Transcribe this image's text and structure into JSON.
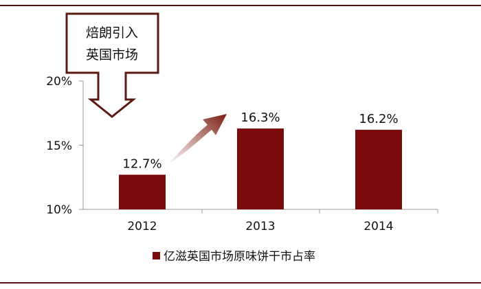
{
  "chart_data": {
    "type": "bar",
    "categories": [
      "2012",
      "2013",
      "2014"
    ],
    "series": [
      {
        "name": "亿滋英国市场原味饼干市占率",
        "values": [
          12.7,
          16.3,
          16.2
        ]
      }
    ],
    "data_labels": [
      "12.7%",
      "16.3%",
      "16.2%"
    ],
    "y_ticks": [
      "10%",
      "15%",
      "20%"
    ],
    "ylim": [
      10,
      20
    ],
    "grid": false,
    "legend_position": "bottom-center",
    "bar_color": "#7b0a0a",
    "annotations": {
      "callout_line1": "焙朗引入",
      "callout_line2": "英国市场"
    }
  }
}
